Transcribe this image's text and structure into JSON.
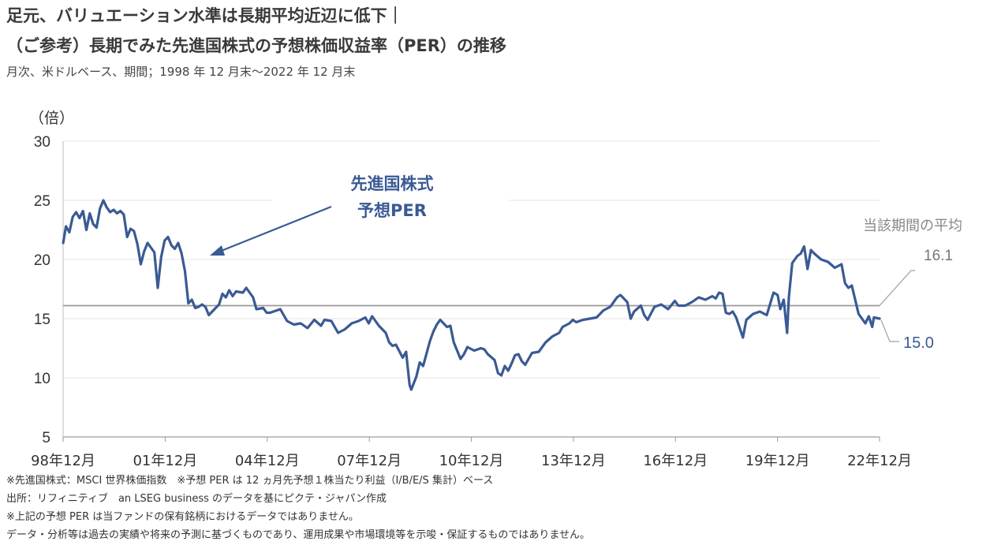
{
  "header": {
    "title_line1": "足元、バリュエーション水準は長期平均近辺に低下｜",
    "title_line2": "（ご参考）長期でみた先進国株式の予想株価収益率（PER）の推移",
    "subtitle": "月次、米ドルベース、期間；1998 年 12 月末～2022 年 12 月末"
  },
  "chart_data": {
    "type": "line",
    "unit_label": "（倍）",
    "ylim": [
      5,
      30
    ],
    "yticks": [
      "30",
      "25",
      "20",
      "15",
      "10",
      "5"
    ],
    "xlim": [
      1998.9167,
      2022.9167
    ],
    "xticks": [
      {
        "label": "98年12月",
        "x": 1998.9167
      },
      {
        "label": "01年12月",
        "x": 2001.9167
      },
      {
        "label": "04年12月",
        "x": 2004.9167
      },
      {
        "label": "07年12月",
        "x": 2007.9167
      },
      {
        "label": "10年12月",
        "x": 2010.9167
      },
      {
        "label": "13年12月",
        "x": 2013.9167
      },
      {
        "label": "16年12月",
        "x": 2016.9167
      },
      {
        "label": "19年12月",
        "x": 2019.9167
      },
      {
        "label": "22年12月",
        "x": 2022.9167
      }
    ],
    "grid": "horizontal",
    "series": [
      {
        "name": "先進国株式 予想PER",
        "color": "#3a5a94",
        "points": [
          [
            1998.92,
            21.4
          ],
          [
            1999.0,
            22.8
          ],
          [
            1999.1,
            22.3
          ],
          [
            1999.2,
            23.6
          ],
          [
            1999.3,
            24.0
          ],
          [
            1999.4,
            23.5
          ],
          [
            1999.5,
            24.1
          ],
          [
            1999.6,
            22.5
          ],
          [
            1999.7,
            23.9
          ],
          [
            1999.8,
            23.0
          ],
          [
            1999.9,
            22.7
          ],
          [
            2000.0,
            24.3
          ],
          [
            2000.1,
            25.0
          ],
          [
            2000.2,
            24.4
          ],
          [
            2000.3,
            24.0
          ],
          [
            2000.4,
            24.2
          ],
          [
            2000.5,
            23.9
          ],
          [
            2000.6,
            24.1
          ],
          [
            2000.7,
            23.8
          ],
          [
            2000.8,
            21.9
          ],
          [
            2000.9,
            22.6
          ],
          [
            2001.0,
            22.4
          ],
          [
            2001.1,
            21.3
          ],
          [
            2001.2,
            19.6
          ],
          [
            2001.3,
            20.7
          ],
          [
            2001.4,
            21.4
          ],
          [
            2001.5,
            21.0
          ],
          [
            2001.6,
            20.6
          ],
          [
            2001.7,
            17.6
          ],
          [
            2001.8,
            20.2
          ],
          [
            2001.9,
            21.6
          ],
          [
            2002.0,
            21.9
          ],
          [
            2002.1,
            21.2
          ],
          [
            2002.2,
            20.9
          ],
          [
            2002.3,
            21.4
          ],
          [
            2002.4,
            20.5
          ],
          [
            2002.5,
            19.0
          ],
          [
            2002.6,
            16.3
          ],
          [
            2002.7,
            16.6
          ],
          [
            2002.8,
            15.9
          ],
          [
            2002.9,
            16.0
          ],
          [
            2003.0,
            16.2
          ],
          [
            2003.1,
            16.0
          ],
          [
            2003.2,
            15.3
          ],
          [
            2003.3,
            15.6
          ],
          [
            2003.5,
            16.2
          ],
          [
            2003.6,
            17.1
          ],
          [
            2003.7,
            16.8
          ],
          [
            2003.8,
            17.4
          ],
          [
            2003.9,
            16.9
          ],
          [
            2004.0,
            17.3
          ],
          [
            2004.2,
            17.2
          ],
          [
            2004.3,
            17.6
          ],
          [
            2004.5,
            16.8
          ],
          [
            2004.6,
            15.8
          ],
          [
            2004.8,
            15.9
          ],
          [
            2004.9,
            15.5
          ],
          [
            2005.0,
            15.5
          ],
          [
            2005.2,
            15.7
          ],
          [
            2005.3,
            15.8
          ],
          [
            2005.5,
            14.8
          ],
          [
            2005.7,
            14.5
          ],
          [
            2005.9,
            14.6
          ],
          [
            2006.1,
            14.2
          ],
          [
            2006.3,
            14.9
          ],
          [
            2006.5,
            14.4
          ],
          [
            2006.6,
            14.9
          ],
          [
            2006.8,
            14.8
          ],
          [
            2007.0,
            13.8
          ],
          [
            2007.2,
            14.1
          ],
          [
            2007.4,
            14.6
          ],
          [
            2007.6,
            14.8
          ],
          [
            2007.8,
            15.1
          ],
          [
            2007.9,
            14.6
          ],
          [
            2008.0,
            15.2
          ],
          [
            2008.2,
            14.4
          ],
          [
            2008.4,
            13.8
          ],
          [
            2008.5,
            13.0
          ],
          [
            2008.6,
            12.7
          ],
          [
            2008.7,
            12.8
          ],
          [
            2008.9,
            11.7
          ],
          [
            2009.0,
            12.2
          ],
          [
            2009.1,
            9.4
          ],
          [
            2009.15,
            9.0
          ],
          [
            2009.3,
            10.1
          ],
          [
            2009.4,
            11.3
          ],
          [
            2009.5,
            11.0
          ],
          [
            2009.7,
            13.1
          ],
          [
            2009.8,
            13.9
          ],
          [
            2009.9,
            14.5
          ],
          [
            2010.0,
            14.9
          ],
          [
            2010.1,
            14.6
          ],
          [
            2010.2,
            14.3
          ],
          [
            2010.3,
            14.4
          ],
          [
            2010.4,
            13.0
          ],
          [
            2010.5,
            12.3
          ],
          [
            2010.6,
            11.6
          ],
          [
            2010.7,
            12.0
          ],
          [
            2010.8,
            12.6
          ],
          [
            2011.0,
            12.3
          ],
          [
            2011.2,
            12.5
          ],
          [
            2011.3,
            12.4
          ],
          [
            2011.4,
            12.0
          ],
          [
            2011.6,
            11.5
          ],
          [
            2011.7,
            10.4
          ],
          [
            2011.8,
            10.2
          ],
          [
            2011.9,
            11.0
          ],
          [
            2012.0,
            10.6
          ],
          [
            2012.1,
            11.2
          ],
          [
            2012.2,
            11.9
          ],
          [
            2012.3,
            12.0
          ],
          [
            2012.4,
            11.4
          ],
          [
            2012.5,
            11.1
          ],
          [
            2012.7,
            12.1
          ],
          [
            2012.9,
            12.2
          ],
          [
            2013.1,
            13.0
          ],
          [
            2013.3,
            13.5
          ],
          [
            2013.5,
            13.8
          ],
          [
            2013.6,
            14.3
          ],
          [
            2013.8,
            14.6
          ],
          [
            2013.9,
            14.9
          ],
          [
            2014.0,
            14.7
          ],
          [
            2014.2,
            14.9
          ],
          [
            2014.4,
            15.0
          ],
          [
            2014.6,
            15.1
          ],
          [
            2014.8,
            15.7
          ],
          [
            2015.0,
            16.0
          ],
          [
            2015.2,
            16.8
          ],
          [
            2015.3,
            17.0
          ],
          [
            2015.5,
            16.4
          ],
          [
            2015.6,
            15.0
          ],
          [
            2015.7,
            15.6
          ],
          [
            2015.9,
            16.1
          ],
          [
            2016.0,
            15.3
          ],
          [
            2016.1,
            14.9
          ],
          [
            2016.3,
            16.0
          ],
          [
            2016.5,
            16.2
          ],
          [
            2016.7,
            15.8
          ],
          [
            2016.9,
            16.5
          ],
          [
            2017.0,
            16.1
          ],
          [
            2017.2,
            16.1
          ],
          [
            2017.4,
            16.4
          ],
          [
            2017.6,
            16.8
          ],
          [
            2017.8,
            16.6
          ],
          [
            2018.0,
            16.9
          ],
          [
            2018.1,
            16.7
          ],
          [
            2018.2,
            17.2
          ],
          [
            2018.3,
            17.1
          ],
          [
            2018.4,
            15.5
          ],
          [
            2018.5,
            15.4
          ],
          [
            2018.6,
            15.6
          ],
          [
            2018.7,
            15.1
          ],
          [
            2018.9,
            13.4
          ],
          [
            2019.0,
            14.9
          ],
          [
            2019.2,
            15.4
          ],
          [
            2019.4,
            15.6
          ],
          [
            2019.6,
            15.3
          ],
          [
            2019.8,
            17.2
          ],
          [
            2019.92,
            17.0
          ],
          [
            2020.0,
            15.8
          ],
          [
            2020.1,
            16.6
          ],
          [
            2020.2,
            13.8
          ],
          [
            2020.25,
            16.8
          ],
          [
            2020.35,
            19.7
          ],
          [
            2020.5,
            20.3
          ],
          [
            2020.6,
            20.5
          ],
          [
            2020.7,
            21.1
          ],
          [
            2020.8,
            19.2
          ],
          [
            2020.9,
            20.8
          ],
          [
            2021.0,
            20.5
          ],
          [
            2021.2,
            20.0
          ],
          [
            2021.4,
            19.8
          ],
          [
            2021.6,
            19.3
          ],
          [
            2021.8,
            19.6
          ],
          [
            2021.9,
            18.0
          ],
          [
            2022.0,
            17.6
          ],
          [
            2022.1,
            17.8
          ],
          [
            2022.2,
            16.6
          ],
          [
            2022.3,
            15.4
          ],
          [
            2022.4,
            15.0
          ],
          [
            2022.5,
            14.6
          ],
          [
            2022.6,
            15.2
          ],
          [
            2022.7,
            14.3
          ],
          [
            2022.75,
            15.1
          ],
          [
            2022.92,
            15.0
          ]
        ]
      }
    ],
    "average_line": {
      "value": 16.1,
      "color": "#9a9a9a"
    },
    "annotations": {
      "callout_line1": "先進国株式",
      "callout_line2": "予想PER",
      "average_label": "当該期間の平均",
      "average_value": "16.1",
      "last_value": "15.0"
    }
  },
  "notes": [
    "※先進国株式：MSCI 世界株価指数　※予想 PER は 12 ヵ月先予想１株当たり利益（I/B/E/S 集計）ベース",
    "出所：リフィニティブ　an LSEG business のデータを基にピクテ・ジャパン作成",
    "※上記の予想 PER は当ファンドの保有銘柄におけるデータではありません。",
    "データ・分析等は過去の実績や将来の予測に基づくものであり、運用成果や市場環境等を示唆・保証するものではありません。"
  ]
}
